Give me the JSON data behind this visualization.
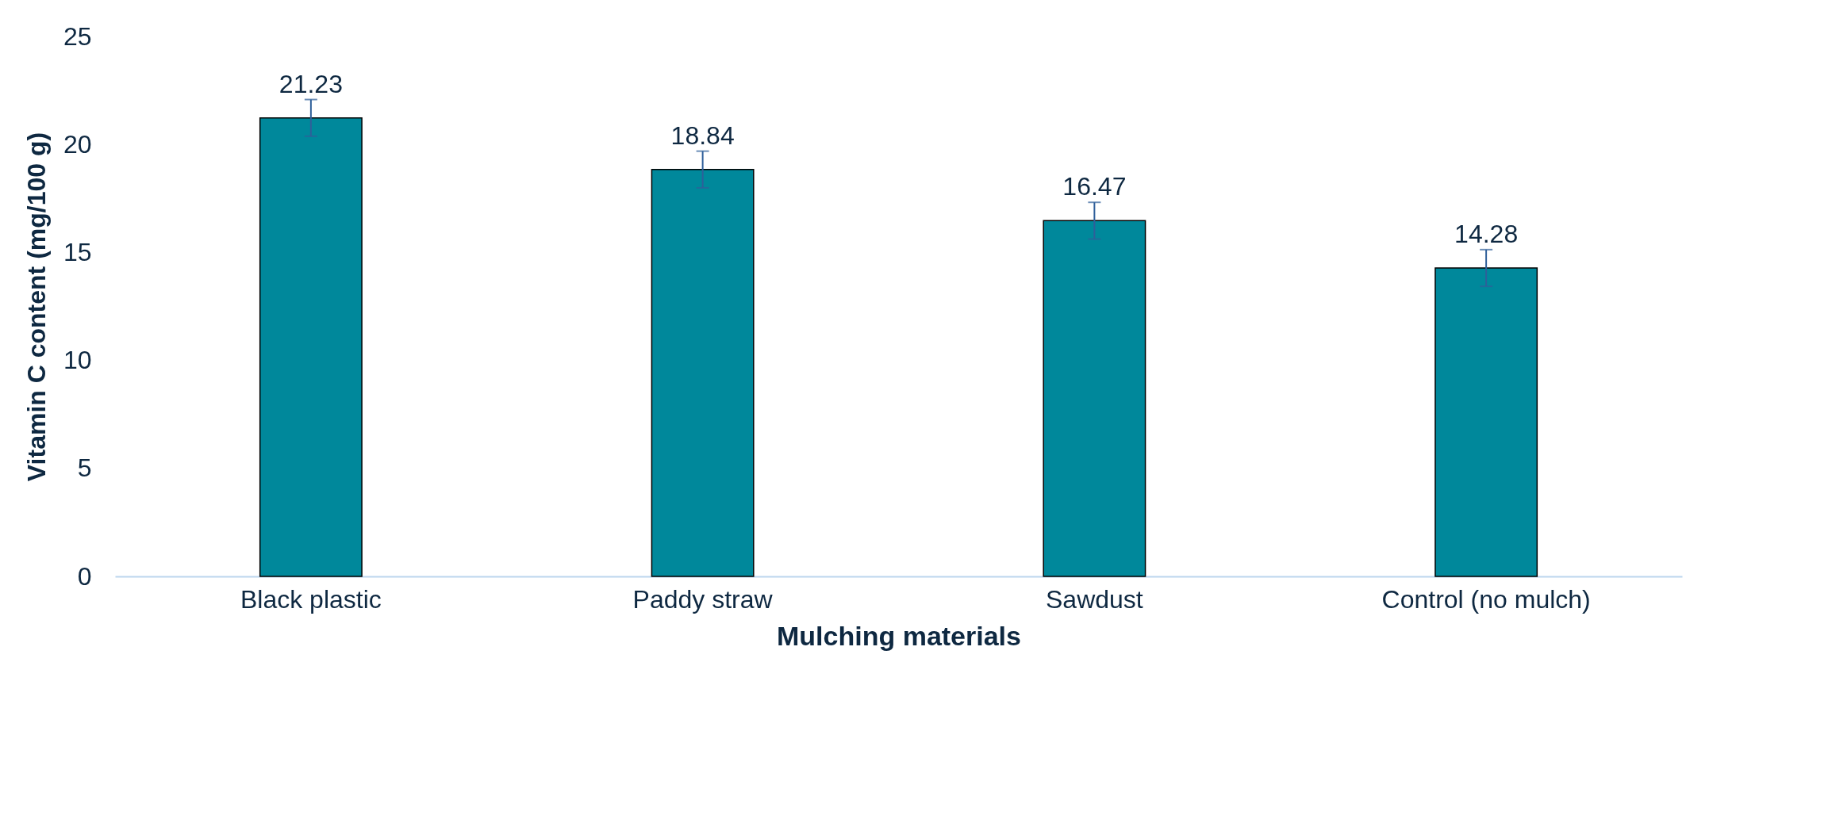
{
  "chart_data": {
    "type": "bar",
    "xlabel": "Mulching materials",
    "ylabel": "Vitamin C content (mg/100 g)",
    "categories": [
      "Black plastic",
      "Paddy straw",
      "Sawdust",
      "Control (no mulch)"
    ],
    "values": [
      21.23,
      18.84,
      16.47,
      14.28
    ],
    "errors": [
      0.85,
      0.85,
      0.85,
      0.85
    ],
    "color": "#00889b",
    "ylim": [
      0,
      25
    ],
    "yticks": [
      0,
      5,
      10,
      15,
      20,
      25
    ],
    "grid": false,
    "data_labels": true
  }
}
